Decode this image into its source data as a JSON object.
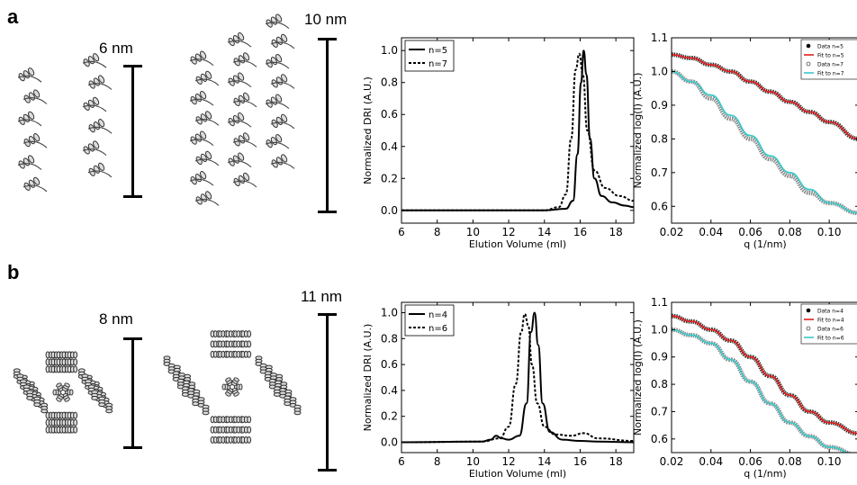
{
  "panels": [
    {
      "label": "a",
      "scale1": "6 nm",
      "scale2": "10 nm",
      "sec": {
        "ylabel": "Normalized DRI (A.U.)",
        "xlabel": "Elution Volume (ml)",
        "xticks": [
          "6",
          "8",
          "10",
          "12",
          "14",
          "16",
          "18"
        ],
        "yticks": [
          "0.0",
          "0.2",
          "0.4",
          "0.6",
          "0.8",
          "1.0"
        ],
        "legend": [
          "n=5",
          "n=7"
        ]
      },
      "saxs": {
        "ylabel": "Normalized log(I) (A.U.)",
        "xlabel": "q (1/nm)",
        "xticks": [
          "0.02",
          "0.04",
          "0.06",
          "0.08",
          "0.10"
        ],
        "yticks": [
          "0.6",
          "0.7",
          "0.8",
          "0.9",
          "1.0",
          "1.1"
        ],
        "legend": [
          "Data n=5",
          "Fit to n=5",
          "Data n=7",
          "Fit to n=7"
        ]
      }
    },
    {
      "label": "b",
      "scale1": "8 nm",
      "scale2": "11 nm",
      "sec": {
        "ylabel": "Normalized DRI (A.U.)",
        "xlabel": "Elution Volume (ml)",
        "xticks": [
          "6",
          "8",
          "10",
          "12",
          "14",
          "16",
          "18"
        ],
        "yticks": [
          "0.0",
          "0.2",
          "0.4",
          "0.6",
          "0.8",
          "1.0"
        ],
        "legend": [
          "n=4",
          "n=6"
        ]
      },
      "saxs": {
        "ylabel": "Normalized log(I) (A.U.)",
        "xlabel": "q (1/nm)",
        "xticks": [
          "0.02",
          "0.04",
          "0.06",
          "0.08",
          "0.10"
        ],
        "yticks": [
          "0.6",
          "0.7",
          "0.8",
          "0.9",
          "1.0",
          "1.1"
        ],
        "legend": [
          "Data n=4",
          "Fit to n=4",
          "Data n=6",
          "Fit to n=6"
        ]
      }
    }
  ],
  "chart_data": [
    {
      "type": "line",
      "panel": "a",
      "xlim": [
        6,
        19
      ],
      "ylim": [
        -0.08,
        1.08
      ],
      "series": [
        {
          "name": "n=5",
          "style": "solid",
          "x": [
            6,
            14,
            15.2,
            15.6,
            15.85,
            16.05,
            16.2,
            16.35,
            16.55,
            16.8,
            17.2,
            17.8,
            18.5,
            19
          ],
          "y": [
            0,
            0,
            0.01,
            0.06,
            0.35,
            0.8,
            1.0,
            0.85,
            0.45,
            0.2,
            0.09,
            0.05,
            0.03,
            0.02
          ]
        },
        {
          "name": "n=7",
          "style": "dotted",
          "x": [
            6,
            14,
            14.8,
            15.2,
            15.5,
            15.75,
            15.95,
            16.15,
            16.4,
            16.8,
            17.4,
            18.2,
            19
          ],
          "y": [
            0,
            0,
            0.02,
            0.1,
            0.45,
            0.88,
            0.98,
            0.85,
            0.5,
            0.25,
            0.14,
            0.09,
            0.06
          ]
        }
      ]
    },
    {
      "type": "line",
      "panel": "a",
      "xlim": [
        0.02,
        0.115
      ],
      "ylim": [
        0.55,
        1.1
      ],
      "series": [
        {
          "name": "Data n=5",
          "color": "#333333",
          "x": [
            0.02,
            0.03,
            0.04,
            0.05,
            0.06,
            0.07,
            0.08,
            0.09,
            0.1,
            0.115
          ],
          "y": [
            1.05,
            1.04,
            1.02,
            1.0,
            0.97,
            0.94,
            0.91,
            0.88,
            0.85,
            0.8
          ]
        },
        {
          "name": "Fit to n=5",
          "color": "#e02020",
          "x": [
            0.02,
            0.03,
            0.04,
            0.05,
            0.06,
            0.07,
            0.08,
            0.09,
            0.1,
            0.115
          ],
          "y": [
            1.05,
            1.04,
            1.02,
            1.0,
            0.97,
            0.94,
            0.91,
            0.88,
            0.85,
            0.8
          ]
        },
        {
          "name": "Data n=7",
          "color": "#888888",
          "x": [
            0.02,
            0.03,
            0.04,
            0.05,
            0.06,
            0.07,
            0.08,
            0.09,
            0.1,
            0.115
          ],
          "y": [
            1.0,
            0.97,
            0.92,
            0.86,
            0.8,
            0.74,
            0.69,
            0.64,
            0.61,
            0.58
          ]
        },
        {
          "name": "Fit to n=7",
          "color": "#3cc8c8",
          "x": [
            0.02,
            0.03,
            0.04,
            0.05,
            0.06,
            0.07,
            0.08,
            0.09,
            0.1,
            0.115
          ],
          "y": [
            1.0,
            0.97,
            0.93,
            0.87,
            0.81,
            0.75,
            0.7,
            0.65,
            0.61,
            0.58
          ]
        }
      ]
    },
    {
      "type": "line",
      "panel": "b",
      "xlim": [
        6,
        19
      ],
      "ylim": [
        -0.08,
        1.08
      ],
      "series": [
        {
          "name": "n=4",
          "style": "solid",
          "x": [
            6,
            10.5,
            11.0,
            11.3,
            11.6,
            12.0,
            12.6,
            13.0,
            13.25,
            13.45,
            13.65,
            13.9,
            14.3,
            15,
            16,
            17,
            19
          ],
          "y": [
            0,
            0.005,
            0.02,
            0.05,
            0.03,
            0.02,
            0.05,
            0.3,
            0.85,
            1.0,
            0.75,
            0.3,
            0.08,
            0.02,
            0.01,
            0.005,
            0
          ]
        },
        {
          "name": "n=6",
          "style": "dotted",
          "x": [
            6,
            10.5,
            11.5,
            12.0,
            12.4,
            12.7,
            12.9,
            13.1,
            13.3,
            13.6,
            14.0,
            14.6,
            15.5,
            16.2,
            17,
            19
          ],
          "y": [
            0,
            0.005,
            0.03,
            0.12,
            0.45,
            0.85,
            0.99,
            0.9,
            0.6,
            0.3,
            0.12,
            0.06,
            0.05,
            0.07,
            0.03,
            0.01
          ]
        }
      ]
    },
    {
      "type": "line",
      "panel": "b",
      "xlim": [
        0.02,
        0.115
      ],
      "ylim": [
        0.55,
        1.1
      ],
      "series": [
        {
          "name": "Data n=4",
          "color": "#333333",
          "x": [
            0.02,
            0.03,
            0.04,
            0.05,
            0.06,
            0.07,
            0.08,
            0.09,
            0.1,
            0.115
          ],
          "y": [
            1.05,
            1.03,
            1.0,
            0.96,
            0.9,
            0.83,
            0.76,
            0.7,
            0.66,
            0.62
          ]
        },
        {
          "name": "Fit to n=4",
          "color": "#e02020",
          "x": [
            0.02,
            0.03,
            0.04,
            0.05,
            0.06,
            0.07,
            0.08,
            0.09,
            0.1,
            0.115
          ],
          "y": [
            1.05,
            1.03,
            1.0,
            0.96,
            0.9,
            0.83,
            0.76,
            0.7,
            0.66,
            0.62
          ]
        },
        {
          "name": "Data n=6",
          "color": "#888888",
          "x": [
            0.02,
            0.03,
            0.04,
            0.05,
            0.06,
            0.07,
            0.08,
            0.09,
            0.1,
            0.115
          ],
          "y": [
            1.0,
            0.98,
            0.95,
            0.89,
            0.81,
            0.73,
            0.66,
            0.61,
            0.57,
            0.54
          ]
        },
        {
          "name": "Fit to n=6",
          "color": "#3cc8c8",
          "x": [
            0.02,
            0.03,
            0.04,
            0.05,
            0.06,
            0.07,
            0.08,
            0.09,
            0.1,
            0.115
          ],
          "y": [
            1.0,
            0.98,
            0.95,
            0.89,
            0.81,
            0.73,
            0.66,
            0.61,
            0.57,
            0.54
          ]
        }
      ]
    }
  ]
}
